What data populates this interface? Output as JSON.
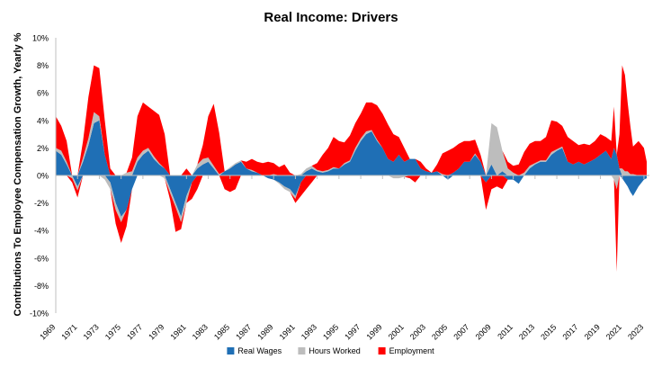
{
  "chart_data": {
    "type": "area",
    "stacked": true,
    "title": "Real Income: Drivers",
    "ylabel": "Contributions To  Employee Compensation Growth, Yearly %",
    "xlabel": "",
    "ylim": [
      -10,
      10
    ],
    "yticks": [
      -10,
      -8,
      -6,
      -4,
      -2,
      0,
      2,
      4,
      6,
      8,
      10
    ],
    "ytick_labels": [
      "-10%",
      "-8%",
      "-6%",
      "-4%",
      "-2%",
      "0%",
      "2%",
      "4%",
      "6%",
      "8%",
      "10%"
    ],
    "xlim": [
      1969,
      2023.5
    ],
    "xticks": [
      1969,
      1971,
      1973,
      1975,
      1977,
      1979,
      1981,
      1983,
      1985,
      1987,
      1989,
      1991,
      1993,
      1995,
      1997,
      1999,
      2001,
      2003,
      2005,
      2007,
      2009,
      2011,
      2013,
      2015,
      2017,
      2019,
      2021,
      2023
    ],
    "xtick_labels": [
      "1969",
      "1971",
      "1973",
      "1975",
      "1977",
      "1979",
      "1981",
      "1983",
      "1985",
      "1987",
      "1989",
      "1991",
      "1993",
      "1995",
      "1997",
      "1999",
      "2001",
      "2003",
      "2005",
      "2007",
      "2009",
      "2011",
      "2013",
      "2015",
      "2017",
      "2019",
      "2021",
      "2023"
    ],
    "grid": false,
    "legend_position": "bottom",
    "x": [
      1969.0,
      1969.5,
      1970.0,
      1970.5,
      1971.0,
      1971.5,
      1972.0,
      1972.5,
      1973.0,
      1973.5,
      1974.0,
      1974.5,
      1975.0,
      1975.5,
      1976.0,
      1976.5,
      1977.0,
      1977.5,
      1978.0,
      1978.5,
      1979.0,
      1979.5,
      1980.0,
      1980.5,
      1981.0,
      1981.5,
      1982.0,
      1982.5,
      1983.0,
      1983.5,
      1984.0,
      1984.5,
      1985.0,
      1985.5,
      1986.0,
      1986.5,
      1987.0,
      1987.5,
      1988.0,
      1988.5,
      1989.0,
      1989.5,
      1990.0,
      1990.5,
      1991.0,
      1991.5,
      1992.0,
      1992.5,
      1993.0,
      1993.5,
      1994.0,
      1994.5,
      1995.0,
      1995.5,
      1996.0,
      1996.5,
      1997.0,
      1997.5,
      1998.0,
      1998.5,
      1999.0,
      1999.5,
      2000.0,
      2000.5,
      2001.0,
      2001.5,
      2002.0,
      2002.5,
      2003.0,
      2003.5,
      2004.0,
      2004.5,
      2005.0,
      2005.5,
      2006.0,
      2006.5,
      2007.0,
      2007.5,
      2008.0,
      2008.5,
      2009.0,
      2009.5,
      2010.0,
      2010.5,
      2011.0,
      2011.5,
      2012.0,
      2012.5,
      2013.0,
      2013.5,
      2014.0,
      2014.5,
      2015.0,
      2015.5,
      2016.0,
      2016.5,
      2017.0,
      2017.5,
      2018.0,
      2018.5,
      2019.0,
      2019.5,
      2020.0,
      2020.25,
      2020.5,
      2020.75,
      2021.0,
      2021.25,
      2021.5,
      2021.75,
      2022.0,
      2022.5,
      2023.0,
      2023.25
    ],
    "series": [
      {
        "name": "Real Wages",
        "color": "#1f6fb5",
        "values": [
          1.8,
          1.5,
          0.8,
          0.0,
          -0.8,
          1.0,
          2.2,
          3.8,
          4.0,
          1.5,
          -0.5,
          -2.0,
          -3.0,
          -2.5,
          -1.0,
          1.0,
          1.5,
          1.8,
          1.2,
          0.8,
          0.5,
          -1.0,
          -2.0,
          -3.0,
          -1.5,
          -0.5,
          0.5,
          0.8,
          1.0,
          0.5,
          0.0,
          0.3,
          0.5,
          0.8,
          1.0,
          0.5,
          0.3,
          0.2,
          0.0,
          -0.2,
          -0.3,
          -0.5,
          -0.8,
          -1.0,
          -1.5,
          -0.5,
          0.3,
          0.5,
          0.3,
          0.2,
          0.3,
          0.5,
          0.5,
          0.8,
          1.0,
          1.8,
          2.5,
          3.0,
          3.2,
          2.5,
          2.0,
          1.2,
          1.0,
          1.5,
          1.0,
          1.2,
          1.2,
          0.5,
          0.3,
          0.2,
          0.3,
          0.0,
          -0.3,
          0.2,
          0.5,
          1.0,
          1.0,
          1.5,
          1.0,
          -0.5,
          0.8,
          0.0,
          0.3,
          -0.3,
          -0.3,
          -0.6,
          0.0,
          0.5,
          0.8,
          1.0,
          1.0,
          1.5,
          1.8,
          2.0,
          1.0,
          0.8,
          1.0,
          0.8,
          1.0,
          1.2,
          1.5,
          1.8,
          1.2,
          2.0,
          1.5,
          0.5,
          -0.2,
          -0.5,
          -0.8,
          -1.2,
          -1.5,
          -0.8,
          -0.3,
          -0.2
        ]
      },
      {
        "name": "Hours Worked",
        "color": "#bdbdbd",
        "values": [
          0.2,
          0.3,
          0.2,
          -0.2,
          -0.3,
          0.3,
          0.5,
          0.8,
          0.3,
          -0.3,
          -0.5,
          -0.5,
          -0.4,
          0.2,
          0.3,
          0.3,
          0.3,
          0.2,
          0.2,
          0.1,
          -0.2,
          -0.3,
          -0.3,
          -0.4,
          -0.5,
          0.0,
          0.3,
          0.4,
          0.3,
          0.2,
          0.1,
          0.0,
          0.1,
          0.1,
          0.1,
          0.0,
          0.1,
          0.0,
          0.0,
          0.0,
          0.1,
          -0.1,
          -0.2,
          -0.2,
          -0.2,
          0.1,
          0.2,
          0.2,
          0.1,
          0.1,
          0.1,
          0.1,
          0.0,
          0.1,
          0.1,
          0.2,
          0.2,
          0.2,
          0.1,
          0.1,
          0.0,
          0.0,
          -0.2,
          -0.2,
          -0.1,
          0.0,
          0.0,
          0.0,
          0.0,
          0.0,
          0.0,
          0.1,
          0.0,
          0.0,
          0.0,
          0.0,
          0.0,
          0.1,
          0.0,
          0.0,
          3.0,
          3.5,
          1.5,
          0.5,
          0.2,
          0.0,
          0.2,
          0.2,
          0.1,
          0.1,
          0.1,
          0.2,
          0.1,
          0.1,
          0.0,
          0.0,
          0.0,
          0.0,
          0.0,
          0.0,
          0.0,
          0.0,
          0.0,
          -0.3,
          -1.0,
          0.0,
          0.5,
          0.3,
          0.3,
          0.1,
          0.1,
          0.0,
          0.0,
          0.0
        ]
      },
      {
        "name": "Employment",
        "color": "#ff0000",
        "values": [
          2.3,
          1.8,
          1.5,
          -0.3,
          -0.5,
          1.2,
          3.0,
          3.4,
          3.5,
          2.5,
          0.5,
          -1.0,
          -1.5,
          -1.2,
          1.0,
          3.0,
          3.5,
          3.0,
          3.3,
          3.5,
          2.5,
          -0.5,
          -1.8,
          -0.5,
          0.5,
          -1.2,
          -1.0,
          1.0,
          3.0,
          4.5,
          3.0,
          -1.0,
          -1.2,
          -1.0,
          0.0,
          0.5,
          0.8,
          0.8,
          0.9,
          1.0,
          0.8,
          0.6,
          0.8,
          0.2,
          -0.3,
          -1.0,
          -1.0,
          -0.5,
          0.5,
          1.2,
          1.6,
          2.2,
          2.0,
          1.5,
          1.8,
          1.8,
          1.8,
          2.1,
          2.0,
          2.5,
          2.5,
          2.5,
          2.0,
          1.3,
          1.0,
          -0.2,
          -0.5,
          0.5,
          0.2,
          0.0,
          0.5,
          1.5,
          1.8,
          1.8,
          1.8,
          1.5,
          1.5,
          1.0,
          0.5,
          -2.0,
          -1.0,
          -0.8,
          -1.0,
          0.5,
          0.5,
          0.8,
          1.5,
          1.6,
          1.6,
          1.4,
          1.7,
          2.3,
          2.0,
          1.5,
          1.8,
          1.7,
          1.2,
          1.5,
          1.2,
          1.3,
          1.5,
          1.0,
          1.3,
          3.0,
          -6.0,
          2.5,
          7.5,
          7.0,
          5.0,
          3.5,
          2.0,
          2.5,
          2.0,
          1.0
        ]
      }
    ]
  }
}
